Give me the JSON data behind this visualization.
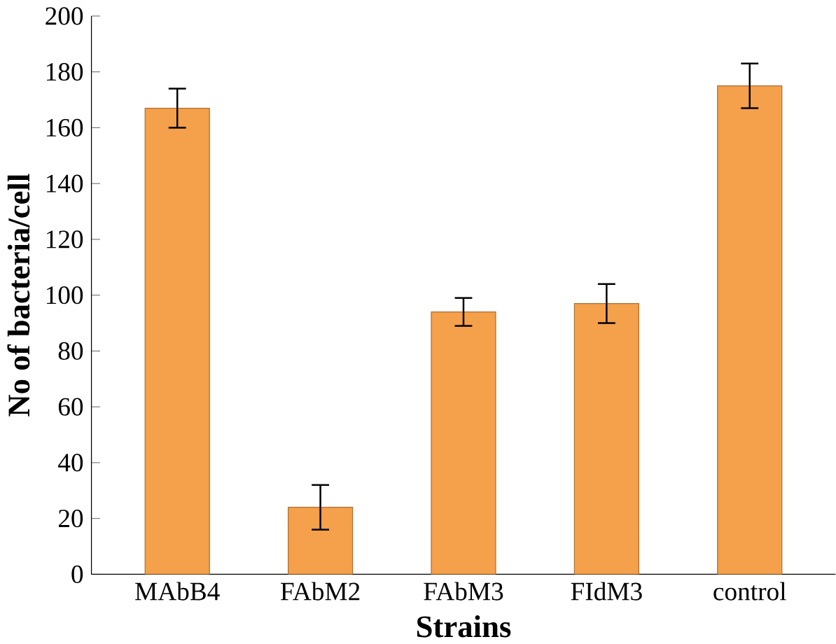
{
  "chart_data": {
    "type": "bar",
    "xlabel": "Strains",
    "ylabel": "No of bacteria/cell",
    "categories": [
      "MAbB4",
      "FAbM2",
      "FAbM3",
      "FIdM3",
      "control"
    ],
    "values": [
      167,
      24,
      94,
      97,
      175
    ],
    "errors": [
      7,
      8,
      5,
      7,
      8
    ],
    "color": "#f5a04a",
    "ylim": [
      0,
      200
    ],
    "yticks": [
      0,
      20,
      40,
      60,
      80,
      100,
      120,
      140,
      160,
      180,
      200
    ],
    "grid": false
  }
}
